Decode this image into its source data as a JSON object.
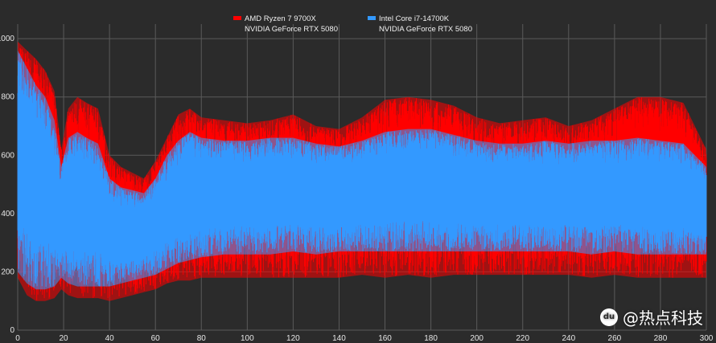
{
  "chart_data": {
    "type": "area",
    "xlim": [
      0,
      300
    ],
    "ylim": [
      0,
      1050
    ],
    "x_ticks": [
      0,
      20,
      40,
      60,
      80,
      100,
      120,
      140,
      160,
      180,
      200,
      220,
      240,
      260,
      280,
      300
    ],
    "y_ticks": [
      0,
      200,
      400,
      600,
      800,
      1000
    ],
    "grid": true,
    "legend_position": "top-center",
    "background_color": "#2b2b2b",
    "grid_color": "#5a5a5a",
    "series": [
      {
        "name_line1": "AMD Ryzen 7 9700X",
        "name_line2": "NVIDIA GeForce RTX 5080",
        "color": "#ff0000",
        "x": [
          0,
          4,
          8,
          12,
          16,
          19,
          22,
          26,
          30,
          35,
          40,
          45,
          50,
          55,
          60,
          65,
          70,
          75,
          80,
          90,
          100,
          110,
          120,
          130,
          140,
          150,
          160,
          170,
          180,
          190,
          200,
          210,
          220,
          230,
          240,
          250,
          260,
          270,
          280,
          290,
          300
        ],
        "high": [
          990,
          960,
          930,
          890,
          820,
          620,
          760,
          800,
          780,
          760,
          600,
          560,
          540,
          520,
          580,
          660,
          740,
          760,
          730,
          720,
          710,
          720,
          740,
          700,
          690,
          730,
          790,
          800,
          790,
          770,
          730,
          710,
          720,
          730,
          700,
          720,
          760,
          800,
          800,
          780,
          620
        ],
        "low": [
          180,
          120,
          100,
          100,
          110,
          140,
          120,
          110,
          110,
          110,
          100,
          110,
          120,
          130,
          140,
          160,
          170,
          170,
          180,
          180,
          180,
          180,
          180,
          180,
          180,
          190,
          180,
          190,
          180,
          190,
          190,
          190,
          190,
          190,
          190,
          180,
          190,
          180,
          180,
          180,
          180
        ]
      },
      {
        "name_line1": "Intel Core i7-14700K",
        "name_line2": "NVIDIA GeForce RTX 5080",
        "color": "#3399ff",
        "x": [
          0,
          4,
          8,
          12,
          16,
          19,
          22,
          26,
          30,
          35,
          40,
          45,
          50,
          55,
          60,
          65,
          70,
          75,
          80,
          90,
          100,
          110,
          120,
          130,
          140,
          150,
          160,
          170,
          180,
          190,
          200,
          210,
          220,
          230,
          240,
          250,
          260,
          270,
          280,
          290,
          300
        ],
        "high": [
          960,
          900,
          840,
          800,
          720,
          560,
          660,
          680,
          660,
          640,
          520,
          490,
          480,
          470,
          520,
          600,
          650,
          680,
          660,
          650,
          650,
          660,
          660,
          640,
          630,
          650,
          680,
          690,
          690,
          670,
          650,
          640,
          640,
          650,
          640,
          650,
          650,
          660,
          650,
          640,
          560
        ],
        "low": [
          200,
          160,
          140,
          140,
          150,
          180,
          160,
          150,
          150,
          150,
          150,
          160,
          170,
          180,
          190,
          210,
          230,
          240,
          250,
          260,
          260,
          260,
          270,
          260,
          270,
          270,
          270,
          270,
          270,
          270,
          270,
          270,
          270,
          270,
          270,
          260,
          270,
          260,
          260,
          260,
          260
        ]
      }
    ]
  },
  "watermark": {
    "logo_text": "du",
    "text": "@热点科技"
  }
}
